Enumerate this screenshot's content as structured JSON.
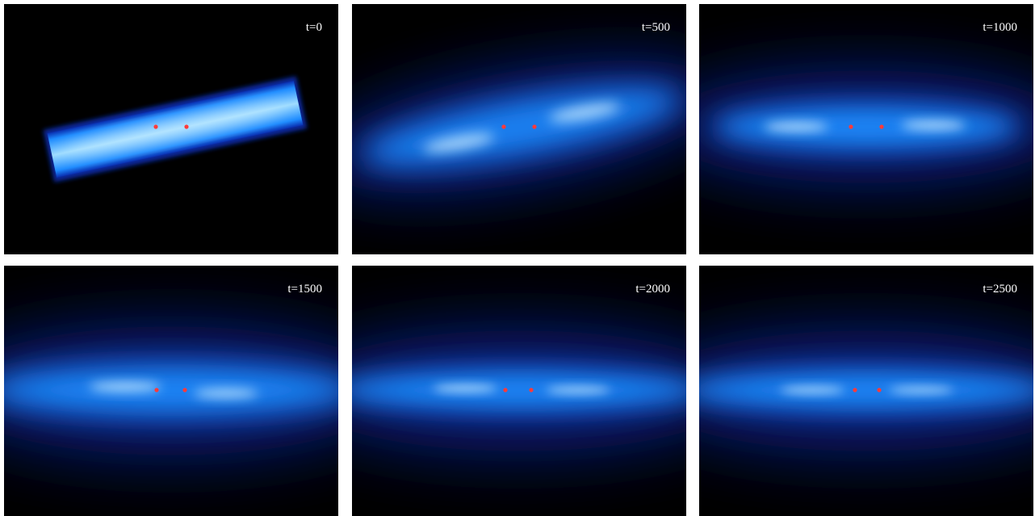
{
  "panels": [
    {
      "label": "t=0"
    },
    {
      "label": "t=500"
    },
    {
      "label": "t=1000"
    },
    {
      "label": "t=1500"
    },
    {
      "label": "t=2000"
    },
    {
      "label": "t=2500"
    }
  ],
  "colors": {
    "background": "#000000",
    "glow_core": "#d6f2ff",
    "glow_mid": "#1e8cff",
    "glow_outer": "#0a2fb0",
    "marker": "#ff3a3a",
    "label_text": "#ffffff"
  }
}
